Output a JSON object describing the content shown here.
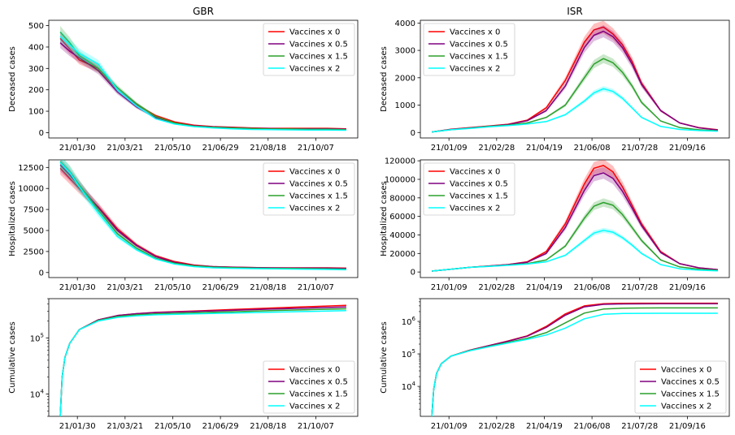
{
  "legend_labels": [
    "Vaccines x 0",
    "Vaccines x 0.5",
    "Vaccines x 1.5",
    "Vaccines x 2"
  ],
  "series_colors": [
    "#ff0000",
    "#800080",
    "#2ca02c",
    "#00ffff"
  ],
  "chart_data": [
    {
      "id": "gbr-deceased",
      "type": "line",
      "title": "GBR",
      "xlabel": "",
      "ylabel": "Deceased cases",
      "xticks": [
        "21/01/30",
        "21/03/21",
        "21/05/10",
        "21/06/29",
        "21/08/18",
        "21/10/07"
      ],
      "ylim": [
        -25,
        525
      ],
      "yticks": [
        0,
        100,
        200,
        300,
        400,
        500
      ],
      "yscale": "linear",
      "legend": "top-right",
      "x": [
        0,
        10,
        20,
        40,
        60,
        80,
        100,
        120,
        140,
        160,
        180,
        200,
        220,
        240,
        260,
        280,
        300
      ],
      "series": [
        {
          "name": "Vaccines x 0",
          "values": [
            440,
            390,
            340,
            300,
            200,
            130,
            80,
            50,
            35,
            28,
            25,
            22,
            20,
            20,
            20,
            20,
            18
          ]
        },
        {
          "name": "Vaccines x 0.5",
          "values": [
            420,
            380,
            350,
            290,
            190,
            120,
            70,
            45,
            32,
            27,
            23,
            20,
            19,
            18,
            18,
            18,
            16
          ]
        },
        {
          "name": "Vaccines x 1.5",
          "values": [
            470,
            420,
            360,
            300,
            210,
            135,
            75,
            45,
            30,
            25,
            22,
            19,
            17,
            17,
            16,
            16,
            14
          ]
        },
        {
          "name": "Vaccines x 2",
          "values": [
            450,
            410,
            370,
            320,
            200,
            125,
            65,
            40,
            28,
            22,
            18,
            15,
            14,
            13,
            12,
            12,
            11
          ]
        }
      ]
    },
    {
      "id": "isr-deceased",
      "type": "line",
      "title": "ISR",
      "xlabel": "",
      "ylabel": "Deceased cases",
      "xticks": [
        "21/01/09",
        "21/02/28",
        "21/04/19",
        "21/06/08",
        "21/07/28",
        "21/09/16"
      ],
      "ylim": [
        -200,
        4100
      ],
      "yticks": [
        0,
        1000,
        2000,
        3000,
        4000
      ],
      "yscale": "linear",
      "legend": "top-left",
      "x": [
        0,
        20,
        40,
        60,
        80,
        100,
        120,
        140,
        160,
        170,
        180,
        190,
        200,
        210,
        220,
        240,
        260,
        280,
        300
      ],
      "series": [
        {
          "name": "Vaccines x 0",
          "values": [
            20,
            120,
            180,
            240,
            300,
            450,
            900,
            1900,
            3300,
            3750,
            3850,
            3600,
            3200,
            2600,
            1800,
            800,
            350,
            180,
            100
          ]
        },
        {
          "name": "Vaccines x 0.5",
          "values": [
            20,
            110,
            170,
            230,
            290,
            430,
            800,
            1700,
            3100,
            3550,
            3700,
            3500,
            3100,
            2500,
            1750,
            800,
            350,
            170,
            90
          ]
        },
        {
          "name": "Vaccines x 1.5",
          "values": [
            20,
            100,
            160,
            220,
            270,
            350,
            550,
            1000,
            2000,
            2500,
            2700,
            2550,
            2200,
            1700,
            1100,
            420,
            180,
            100,
            60
          ]
        },
        {
          "name": "Vaccines x 2",
          "values": [
            20,
            100,
            150,
            210,
            250,
            310,
            400,
            650,
            1150,
            1450,
            1600,
            1500,
            1250,
            900,
            550,
            220,
            110,
            70,
            50
          ]
        }
      ]
    },
    {
      "id": "gbr-hospitalized",
      "type": "line",
      "title": "",
      "xlabel": "",
      "ylabel": "Hospitalized cases",
      "xticks": [
        "21/01/30",
        "21/03/21",
        "21/05/10",
        "21/06/29",
        "21/08/18",
        "21/10/07"
      ],
      "ylim": [
        -600,
        13400
      ],
      "yticks": [
        0,
        2500,
        5000,
        7500,
        10000,
        12500
      ],
      "yscale": "linear",
      "legend": "top-right",
      "x": [
        0,
        10,
        20,
        40,
        60,
        80,
        100,
        120,
        140,
        160,
        180,
        200,
        220,
        240,
        260,
        280,
        300
      ],
      "series": [
        {
          "name": "Vaccines x 0",
          "values": [
            12400,
            11200,
            10000,
            7800,
            5200,
            3300,
            2000,
            1300,
            900,
            700,
            650,
            600,
            560,
            560,
            560,
            560,
            520
          ]
        },
        {
          "name": "Vaccines x 0.5",
          "values": [
            12800,
            11600,
            10300,
            7700,
            5000,
            3200,
            1900,
            1200,
            850,
            700,
            640,
            600,
            560,
            540,
            530,
            520,
            480
          ]
        },
        {
          "name": "Vaccines x 1.5",
          "values": [
            13200,
            12000,
            10400,
            7400,
            4600,
            2900,
            1700,
            1100,
            800,
            650,
            580,
            540,
            500,
            480,
            460,
            440,
            400
          ]
        },
        {
          "name": "Vaccines x 2",
          "values": [
            13100,
            11900,
            10200,
            7100,
            4300,
            2700,
            1600,
            1000,
            700,
            560,
            500,
            460,
            430,
            410,
            390,
            370,
            330
          ]
        }
      ]
    },
    {
      "id": "isr-hospitalized",
      "type": "line",
      "title": "",
      "xlabel": "",
      "ylabel": "Hospitalized cases",
      "xticks": [
        "21/01/09",
        "21/02/28",
        "21/04/19",
        "21/06/08",
        "21/07/28",
        "21/09/16"
      ],
      "ylim": [
        -6000,
        121000
      ],
      "yticks": [
        0,
        20000,
        40000,
        60000,
        80000,
        100000,
        120000
      ],
      "yscale": "linear",
      "legend": "top-left",
      "x": [
        0,
        20,
        40,
        60,
        80,
        100,
        120,
        140,
        160,
        170,
        180,
        190,
        200,
        210,
        220,
        240,
        260,
        280,
        300
      ],
      "series": [
        {
          "name": "Vaccines x 0",
          "values": [
            1000,
            3000,
            5000,
            6500,
            8000,
            11000,
            22000,
            52000,
            95000,
            112000,
            115000,
            108000,
            92000,
            72000,
            52000,
            22000,
            9000,
            4500,
            2500
          ]
        },
        {
          "name": "Vaccines x 0.5",
          "values": [
            1000,
            3000,
            5000,
            6500,
            8000,
            10500,
            20000,
            48000,
            88000,
            104000,
            107000,
            101000,
            87000,
            69000,
            50000,
            21000,
            9000,
            4500,
            2500
          ]
        },
        {
          "name": "Vaccines x 1.5",
          "values": [
            1000,
            3000,
            5000,
            6200,
            7500,
            9000,
            13000,
            28000,
            58000,
            71000,
            75000,
            72000,
            62000,
            48000,
            34000,
            13000,
            5500,
            3000,
            1800
          ]
        },
        {
          "name": "Vaccines x 2",
          "values": [
            1000,
            3000,
            5000,
            6000,
            7200,
            8500,
            11000,
            18000,
            34000,
            42000,
            45000,
            43000,
            37000,
            29000,
            20000,
            8000,
            3500,
            2000,
            1300
          ]
        }
      ]
    },
    {
      "id": "gbr-cumulative",
      "type": "line",
      "title": "",
      "xlabel": "",
      "ylabel": "Cumulative cases",
      "xticks": [
        "21/01/30",
        "21/03/21",
        "21/05/10",
        "21/06/29",
        "21/08/18",
        "21/10/07"
      ],
      "ylim": [
        4000,
        500000
      ],
      "yticks": [
        "10^4",
        "10^5"
      ],
      "yscale": "log",
      "legend": "bottom-right",
      "x": [
        0,
        2,
        5,
        10,
        20,
        40,
        60,
        80,
        100,
        140,
        180,
        220,
        260,
        300
      ],
      "series": [
        {
          "name": "Vaccines x 0",
          "values": [
            4000,
            20000,
            45000,
            80000,
            140000,
            210000,
            250000,
            270000,
            285000,
            300000,
            320000,
            340000,
            360000,
            380000
          ]
        },
        {
          "name": "Vaccines x 0.5",
          "values": [
            4000,
            20000,
            45000,
            80000,
            140000,
            210000,
            250000,
            270000,
            283000,
            295000,
            310000,
            325000,
            340000,
            355000
          ]
        },
        {
          "name": "Vaccines x 1.5",
          "values": [
            4000,
            20000,
            45000,
            80000,
            140000,
            205000,
            240000,
            258000,
            268000,
            280000,
            292000,
            305000,
            318000,
            330000
          ]
        },
        {
          "name": "Vaccines x 2",
          "values": [
            4000,
            20000,
            45000,
            80000,
            140000,
            200000,
            232000,
            248000,
            258000,
            268000,
            277000,
            286000,
            295000,
            305000
          ]
        }
      ]
    },
    {
      "id": "isr-cumulative",
      "type": "line",
      "title": "",
      "xlabel": "",
      "ylabel": "Cumulative cases",
      "xticks": [
        "21/01/09",
        "21/02/28",
        "21/04/19",
        "21/06/08",
        "21/07/28",
        "21/09/16"
      ],
      "ylim": [
        1200,
        5000000
      ],
      "yticks": [
        "10^4",
        "10^5",
        "10^6"
      ],
      "yscale": "log",
      "legend": "bottom-right",
      "x": [
        0,
        2,
        5,
        10,
        20,
        40,
        60,
        80,
        100,
        120,
        140,
        160,
        180,
        200,
        220,
        240,
        260,
        280,
        300
      ],
      "series": [
        {
          "name": "Vaccines x 0",
          "values": [
            1200,
            8000,
            25000,
            50000,
            85000,
            130000,
            180000,
            250000,
            360000,
            700000,
            1700000,
            3000000,
            3500000,
            3600000,
            3620000,
            3630000,
            3630000,
            3630000,
            3630000
          ]
        },
        {
          "name": "Vaccines x 0.5",
          "values": [
            1200,
            8000,
            25000,
            50000,
            85000,
            130000,
            180000,
            245000,
            350000,
            650000,
            1550000,
            2800000,
            3350000,
            3450000,
            3470000,
            3480000,
            3480000,
            3480000,
            3480000
          ]
        },
        {
          "name": "Vaccines x 1.5",
          "values": [
            1200,
            8000,
            25000,
            50000,
            85000,
            128000,
            170000,
            225000,
            300000,
            450000,
            900000,
            1800000,
            2400000,
            2550000,
            2580000,
            2590000,
            2590000,
            2590000,
            2590000
          ]
        },
        {
          "name": "Vaccines x 2",
          "values": [
            1200,
            8000,
            25000,
            50000,
            85000,
            125000,
            165000,
            215000,
            280000,
            380000,
            620000,
            1200000,
            1650000,
            1750000,
            1770000,
            1780000,
            1780000,
            1780000,
            1780000
          ]
        }
      ]
    }
  ]
}
